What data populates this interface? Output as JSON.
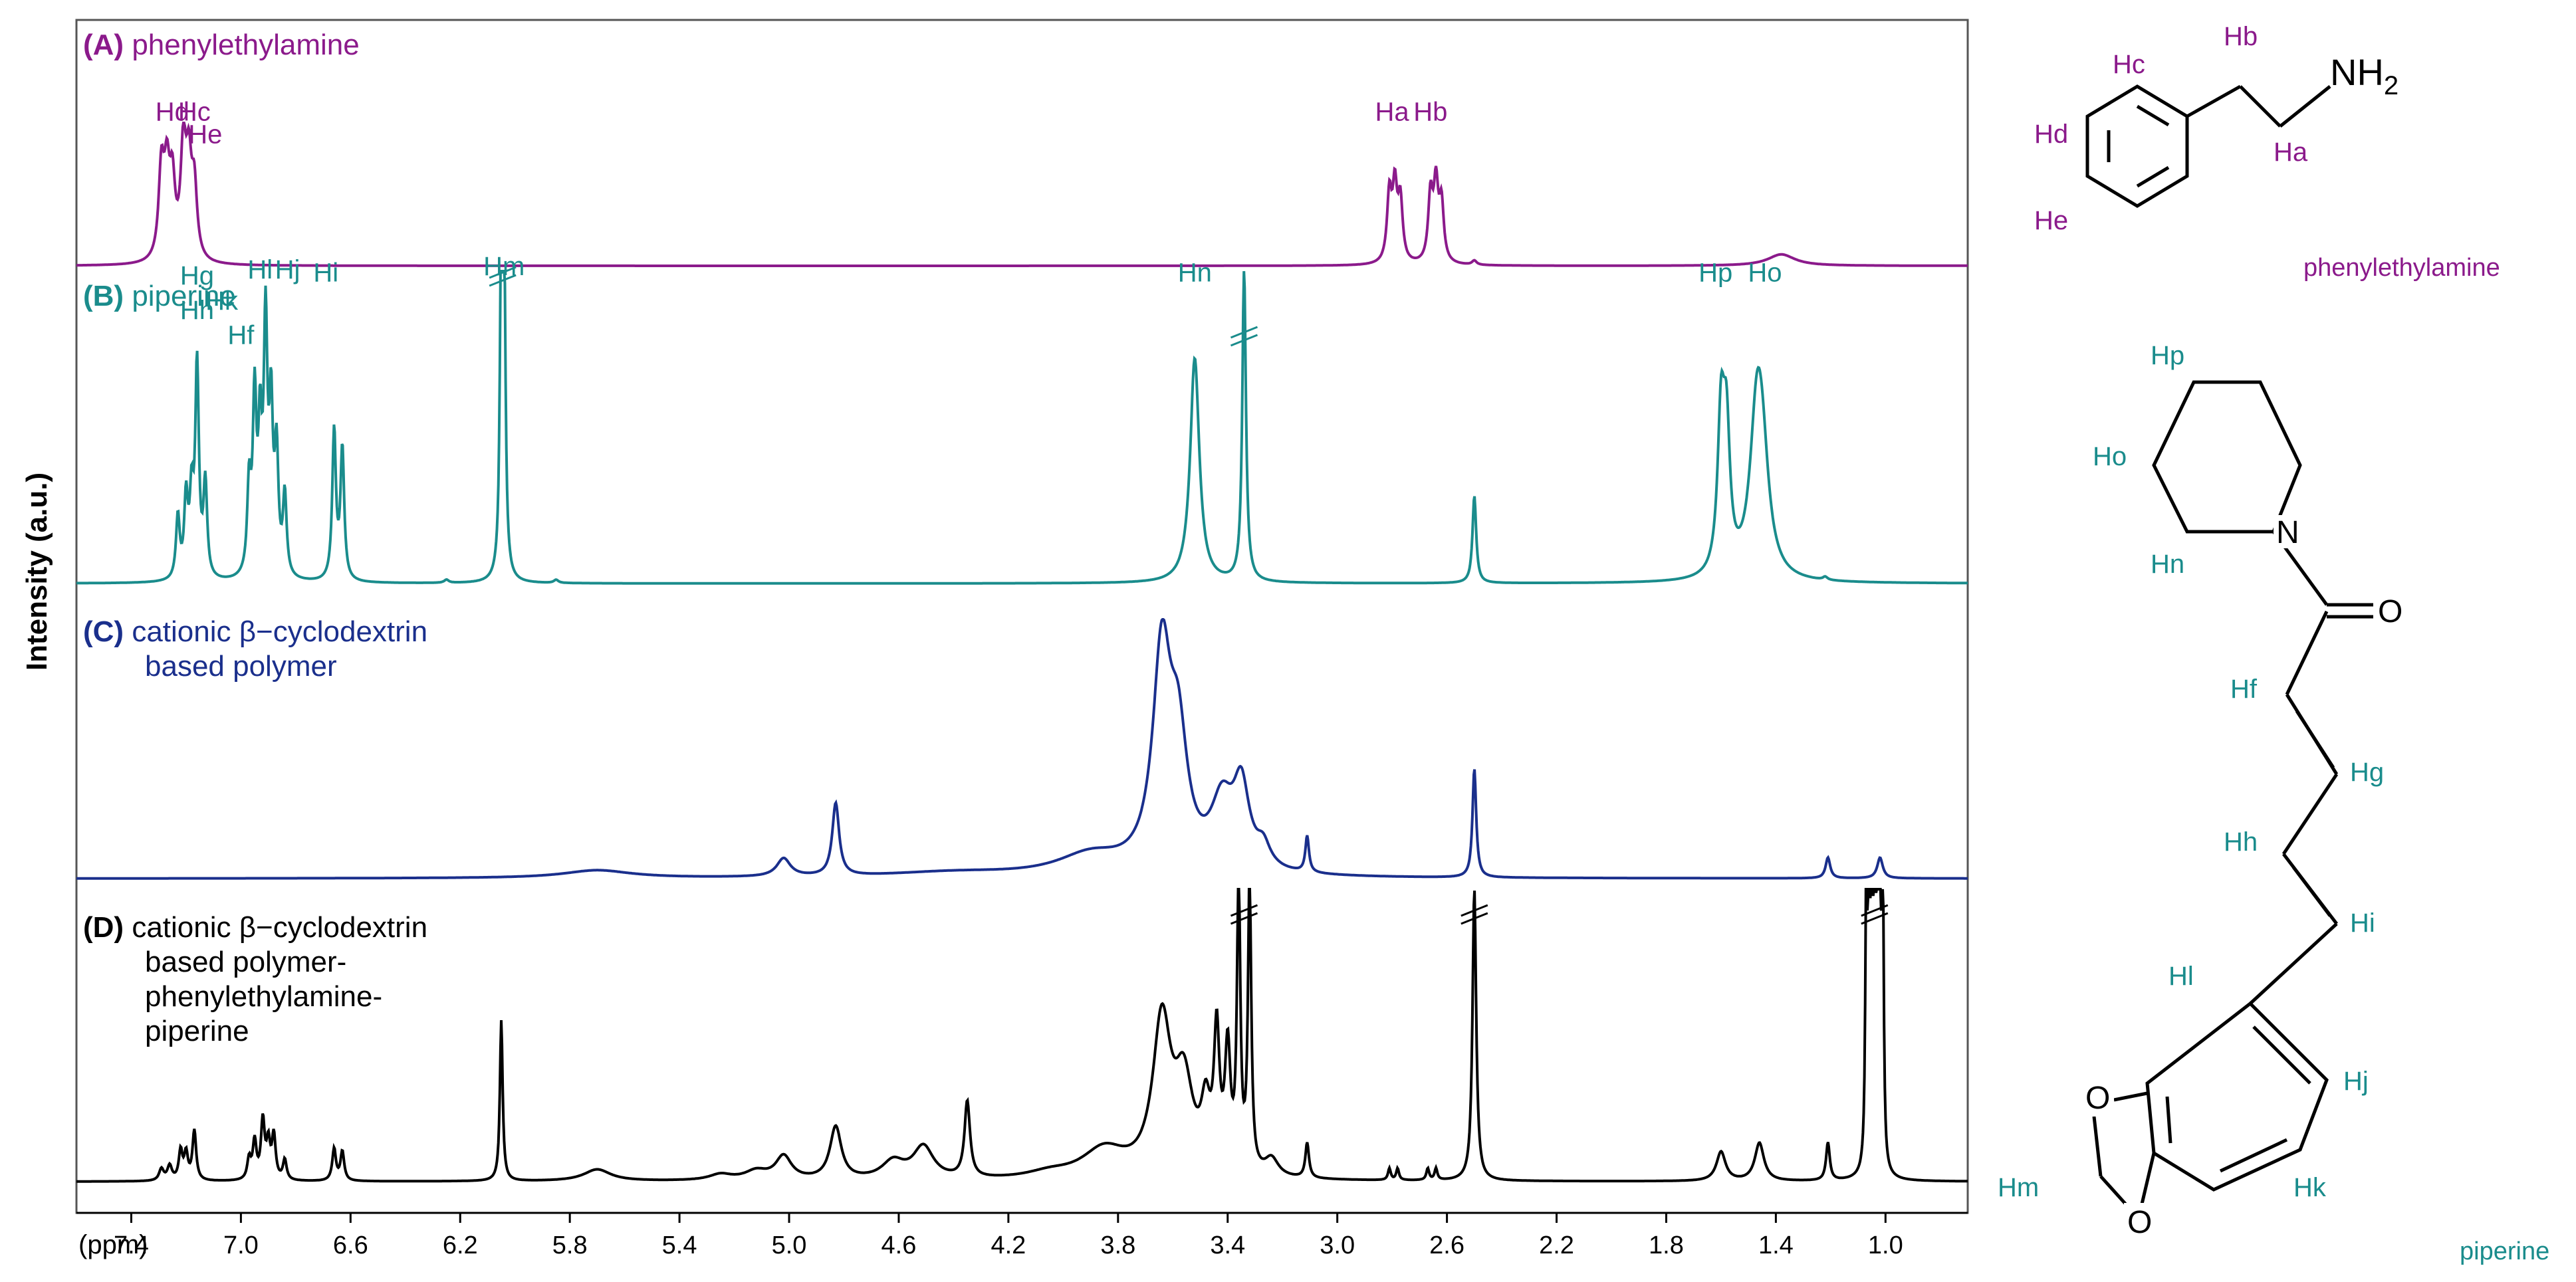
{
  "chart_data": {
    "type": "line",
    "title": "",
    "xlabel": "(ppm)",
    "ylabel": "Intensity (a.u.)",
    "xlim": [
      7.6,
      0.7
    ],
    "x_ticks": [
      "7.4",
      "7.0",
      "6.6",
      "6.2",
      "5.8",
      "5.4",
      "5.0",
      "4.6",
      "4.2",
      "3.8",
      "3.4",
      "3.0",
      "2.6",
      "2.2",
      "1.8",
      "1.4",
      "1.0"
    ],
    "x_tick_values": [
      7.4,
      7.0,
      6.6,
      6.2,
      5.8,
      5.4,
      5.0,
      4.6,
      4.2,
      3.8,
      3.4,
      3.0,
      2.6,
      2.2,
      1.8,
      1.4,
      1.0
    ],
    "series": [
      {
        "id": "A",
        "name_prefix": "(A)",
        "name": "phenylethylamine",
        "color": "#8B1A8B",
        "baseline": 0,
        "peaks": [
          {
            "x": 7.29,
            "h": 0.62,
            "w": 0.012
          },
          {
            "x": 7.27,
            "h": 0.55,
            "w": 0.012
          },
          {
            "x": 7.25,
            "h": 0.5,
            "w": 0.012
          },
          {
            "x": 7.21,
            "h": 0.75,
            "w": 0.012
          },
          {
            "x": 7.19,
            "h": 0.6,
            "w": 0.012
          },
          {
            "x": 7.17,
            "h": 0.48,
            "w": 0.012
          },
          {
            "x": 2.81,
            "h": 0.47,
            "w": 0.01
          },
          {
            "x": 2.79,
            "h": 0.5,
            "w": 0.01
          },
          {
            "x": 2.77,
            "h": 0.42,
            "w": 0.01
          },
          {
            "x": 2.66,
            "h": 0.46,
            "w": 0.01
          },
          {
            "x": 2.64,
            "h": 0.52,
            "w": 0.01
          },
          {
            "x": 2.62,
            "h": 0.4,
            "w": 0.01
          },
          {
            "x": 2.5,
            "h": 0.03,
            "w": 0.01
          },
          {
            "x": 1.38,
            "h": 0.08,
            "w": 0.06
          }
        ],
        "labels": [
          {
            "text": "Hd",
            "x": 7.25,
            "y": 0.98
          },
          {
            "text": "Hc",
            "x": 7.17,
            "y": 0.98
          },
          {
            "text": "He",
            "x": 7.13,
            "y": 0.82
          },
          {
            "text": "Ha",
            "x": 2.8,
            "y": 0.98
          },
          {
            "text": "Hb",
            "x": 2.66,
            "y": 0.98
          }
        ]
      },
      {
        "id": "B",
        "name_prefix": "(B)",
        "name": "piperine",
        "color": "#1A8C8C",
        "baseline": 0,
        "peaks": [
          {
            "x": 7.23,
            "h": 0.2,
            "w": 0.008
          },
          {
            "x": 7.2,
            "h": 0.25,
            "w": 0.008
          },
          {
            "x": 7.18,
            "h": 0.24,
            "w": 0.008
          },
          {
            "x": 7.16,
            "h": 0.68,
            "w": 0.008
          },
          {
            "x": 7.13,
            "h": 0.3,
            "w": 0.008
          },
          {
            "x": 6.97,
            "h": 0.28,
            "w": 0.008
          },
          {
            "x": 6.95,
            "h": 0.55,
            "w": 0.008
          },
          {
            "x": 6.93,
            "h": 0.42,
            "w": 0.008
          },
          {
            "x": 6.91,
            "h": 0.78,
            "w": 0.008
          },
          {
            "x": 6.89,
            "h": 0.5,
            "w": 0.008
          },
          {
            "x": 6.87,
            "h": 0.38,
            "w": 0.008
          },
          {
            "x": 6.84,
            "h": 0.26,
            "w": 0.008
          },
          {
            "x": 6.66,
            "h": 0.48,
            "w": 0.008
          },
          {
            "x": 6.63,
            "h": 0.42,
            "w": 0.008
          },
          {
            "x": 6.05,
            "h": 1.0,
            "w": 0.006
          },
          {
            "x": 6.04,
            "h": 1.0,
            "w": 0.006
          },
          {
            "x": 6.25,
            "h": 0.01,
            "w": 0.01
          },
          {
            "x": 5.85,
            "h": 0.01,
            "w": 0.01
          },
          {
            "x": 3.52,
            "h": 0.72,
            "w": 0.02
          },
          {
            "x": 3.34,
            "h": 1.0,
            "w": 0.008
          },
          {
            "x": 2.5,
            "h": 0.28,
            "w": 0.008
          },
          {
            "x": 1.6,
            "h": 0.48,
            "w": 0.015
          },
          {
            "x": 1.58,
            "h": 0.42,
            "w": 0.015
          },
          {
            "x": 1.47,
            "h": 0.45,
            "w": 0.03
          },
          {
            "x": 1.45,
            "h": 0.3,
            "w": 0.03
          },
          {
            "x": 1.22,
            "h": 0.01,
            "w": 0.01
          }
        ],
        "labels": [
          {
            "text": "Hg",
            "x": 7.16,
            "y": 0.94
          },
          {
            "text": "Hh",
            "x": 7.16,
            "y": 0.83
          },
          {
            "text": "Hk",
            "x": 7.07,
            "y": 0.86
          },
          {
            "text": "Hf",
            "x": 7.0,
            "y": 0.75
          },
          {
            "text": "Hl",
            "x": 6.93,
            "y": 0.96
          },
          {
            "text": "Hj",
            "x": 6.83,
            "y": 0.96
          },
          {
            "text": "Hi",
            "x": 6.69,
            "y": 0.95
          },
          {
            "text": "Hm",
            "x": 6.04,
            "y": 0.97
          },
          {
            "text": "Hn",
            "x": 3.52,
            "y": 0.95
          },
          {
            "text": "Hp",
            "x": 1.62,
            "y": 0.95
          },
          {
            "text": "Ho",
            "x": 1.44,
            "y": 0.95
          }
        ]
      },
      {
        "id": "C",
        "name_prefix": "(C)",
        "name": "cationic β−cyclodextrin",
        "name_line2": "based polymer",
        "color": "#1A2F8C",
        "baseline": 0,
        "peaks": [
          {
            "x": 5.7,
            "h": 0.03,
            "w": 0.15
          },
          {
            "x": 5.02,
            "h": 0.07,
            "w": 0.03
          },
          {
            "x": 4.83,
            "h": 0.28,
            "w": 0.015
          },
          {
            "x": 4.4,
            "h": 0.02,
            "w": 0.3
          },
          {
            "x": 3.9,
            "h": 0.08,
            "w": 0.15
          },
          {
            "x": 3.64,
            "h": 0.82,
            "w": 0.04
          },
          {
            "x": 3.58,
            "h": 0.45,
            "w": 0.04
          },
          {
            "x": 3.42,
            "h": 0.25,
            "w": 0.05
          },
          {
            "x": 3.35,
            "h": 0.3,
            "w": 0.035
          },
          {
            "x": 3.27,
            "h": 0.08,
            "w": 0.03
          },
          {
            "x": 3.11,
            "h": 0.14,
            "w": 0.008
          },
          {
            "x": 2.5,
            "h": 0.42,
            "w": 0.008
          },
          {
            "x": 1.21,
            "h": 0.08,
            "w": 0.01
          },
          {
            "x": 1.02,
            "h": 0.08,
            "w": 0.012
          }
        ],
        "labels": []
      },
      {
        "id": "D",
        "name_prefix": "(D)",
        "name": "cationic β−cyclodextrin",
        "name_line2": "based polymer-",
        "name_line3": "phenylethylamine-",
        "name_line4": "piperine",
        "color": "#000000",
        "baseline": 0,
        "peaks": [
          {
            "x": 7.29,
            "h": 0.04,
            "w": 0.01
          },
          {
            "x": 7.26,
            "h": 0.05,
            "w": 0.01
          },
          {
            "x": 7.22,
            "h": 0.1,
            "w": 0.008
          },
          {
            "x": 7.2,
            "h": 0.09,
            "w": 0.008
          },
          {
            "x": 7.17,
            "h": 0.17,
            "w": 0.008
          },
          {
            "x": 6.97,
            "h": 0.07,
            "w": 0.008
          },
          {
            "x": 6.95,
            "h": 0.13,
            "w": 0.008
          },
          {
            "x": 6.92,
            "h": 0.2,
            "w": 0.008
          },
          {
            "x": 6.9,
            "h": 0.12,
            "w": 0.008
          },
          {
            "x": 6.88,
            "h": 0.15,
            "w": 0.008
          },
          {
            "x": 6.84,
            "h": 0.07,
            "w": 0.008
          },
          {
            "x": 6.66,
            "h": 0.11,
            "w": 0.008
          },
          {
            "x": 6.63,
            "h": 0.1,
            "w": 0.008
          },
          {
            "x": 6.05,
            "h": 0.55,
            "w": 0.006
          },
          {
            "x": 5.7,
            "h": 0.04,
            "w": 0.06
          },
          {
            "x": 5.25,
            "h": 0.02,
            "w": 0.05
          },
          {
            "x": 5.12,
            "h": 0.03,
            "w": 0.05
          },
          {
            "x": 5.02,
            "h": 0.08,
            "w": 0.035
          },
          {
            "x": 4.83,
            "h": 0.18,
            "w": 0.025
          },
          {
            "x": 4.62,
            "h": 0.06,
            "w": 0.05
          },
          {
            "x": 4.51,
            "h": 0.11,
            "w": 0.045
          },
          {
            "x": 4.35,
            "h": 0.26,
            "w": 0.012
          },
          {
            "x": 4.05,
            "h": 0.02,
            "w": 0.1
          },
          {
            "x": 3.85,
            "h": 0.1,
            "w": 0.1
          },
          {
            "x": 3.64,
            "h": 0.52,
            "w": 0.04
          },
          {
            "x": 3.56,
            "h": 0.3,
            "w": 0.04
          },
          {
            "x": 3.48,
            "h": 0.2,
            "w": 0.02
          },
          {
            "x": 3.44,
            "h": 0.45,
            "w": 0.012
          },
          {
            "x": 3.4,
            "h": 0.4,
            "w": 0.012
          },
          {
            "x": 3.36,
            "h": 1.0,
            "w": 0.007
          },
          {
            "x": 3.32,
            "h": 1.0,
            "w": 0.007
          },
          {
            "x": 3.24,
            "h": 0.06,
            "w": 0.03
          },
          {
            "x": 3.11,
            "h": 0.12,
            "w": 0.008
          },
          {
            "x": 2.81,
            "h": 0.04,
            "w": 0.006
          },
          {
            "x": 2.78,
            "h": 0.04,
            "w": 0.006
          },
          {
            "x": 2.67,
            "h": 0.04,
            "w": 0.006
          },
          {
            "x": 2.64,
            "h": 0.04,
            "w": 0.006
          },
          {
            "x": 2.5,
            "h": 1.0,
            "w": 0.008
          },
          {
            "x": 1.6,
            "h": 0.1,
            "w": 0.02
          },
          {
            "x": 1.46,
            "h": 0.13,
            "w": 0.02
          },
          {
            "x": 1.21,
            "h": 0.13,
            "w": 0.008
          },
          {
            "x": 1.07,
            "h": 1.0,
            "w": 0.004
          },
          {
            "x": 1.06,
            "h": 1.0,
            "w": 0.004
          },
          {
            "x": 1.05,
            "h": 1.0,
            "w": 0.004
          },
          {
            "x": 1.04,
            "h": 1.0,
            "w": 0.004
          },
          {
            "x": 1.03,
            "h": 1.0,
            "w": 0.004
          },
          {
            "x": 1.02,
            "h": 1.0,
            "w": 0.004
          },
          {
            "x": 1.01,
            "h": 1.0,
            "w": 0.004
          }
        ],
        "labels": []
      }
    ],
    "legend": "inside-top-left",
    "grid": false
  },
  "structures": {
    "phenylethylamine": {
      "name": "phenylethylamine",
      "color": "#8B1A8B",
      "labels": {
        "Hc": "Hc",
        "Hd": "Hd",
        "He": "He",
        "Hb": "Hb",
        "Ha": "Ha",
        "NH": "NH",
        "sub2": "2"
      }
    },
    "piperine": {
      "name": "piperine",
      "color": "#1A8C8C",
      "labels": {
        "Hp": "Hp",
        "Ho": "Ho",
        "Hn": "Hn",
        "N": "N",
        "O": "O",
        "Hf": "Hf",
        "Hg": "Hg",
        "Hh": "Hh",
        "Hi": "Hi",
        "Hl": "Hl",
        "Hj": "Hj",
        "Hk": "Hk",
        "Hm": "Hm",
        "O1": "O",
        "O2": "O"
      }
    }
  }
}
